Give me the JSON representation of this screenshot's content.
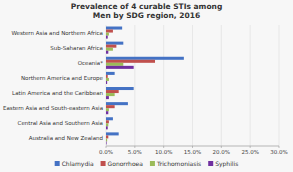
{
  "chart_data": {
    "type": "bar",
    "orientation": "horizontal",
    "title": "Prevalence of 4 curable STIs among\nMen by SDG region, 2016",
    "categories": [
      "Western Asia and Northern Africa",
      "Sub-Saharan Africa",
      "Oceania*",
      "Northern America and Europe",
      "Latin America and the Caribbean",
      "Eastern Asia and South-eastern Asia",
      "Central Asia and Southern Asia",
      "Australia and New Zealand"
    ],
    "series": [
      {
        "name": "Chlamydia",
        "color": "#4472c4",
        "values": [
          2.8,
          3.0,
          13.5,
          1.5,
          4.8,
          3.8,
          1.2,
          2.2
        ]
      },
      {
        "name": "Gonorrhoea",
        "color": "#c0504d",
        "values": [
          1.2,
          1.8,
          8.5,
          0.3,
          2.2,
          1.5,
          0.5,
          0.4
        ]
      },
      {
        "name": "Trichomoniasis",
        "color": "#9bbb59",
        "values": [
          0.5,
          1.2,
          3.0,
          0.5,
          1.5,
          0.5,
          0.4,
          0.2
        ]
      },
      {
        "name": "Syphilis",
        "color": "#7030a0",
        "values": [
          0.3,
          0.4,
          4.8,
          0.2,
          0.5,
          0.4,
          0.3,
          0.1
        ]
      }
    ],
    "xlim": [
      0,
      30
    ],
    "xticks": [
      {
        "value": 0,
        "label": "0.0%"
      },
      {
        "value": 5,
        "label": "5.0%"
      },
      {
        "value": 10,
        "label": "10.0%"
      },
      {
        "value": 15,
        "label": "15.0%"
      },
      {
        "value": 20,
        "label": "20.0%"
      },
      {
        "value": 25,
        "label": "25.0%"
      },
      {
        "value": 30,
        "label": "30.0%"
      }
    ],
    "grid": true,
    "legend": "bottom"
  }
}
